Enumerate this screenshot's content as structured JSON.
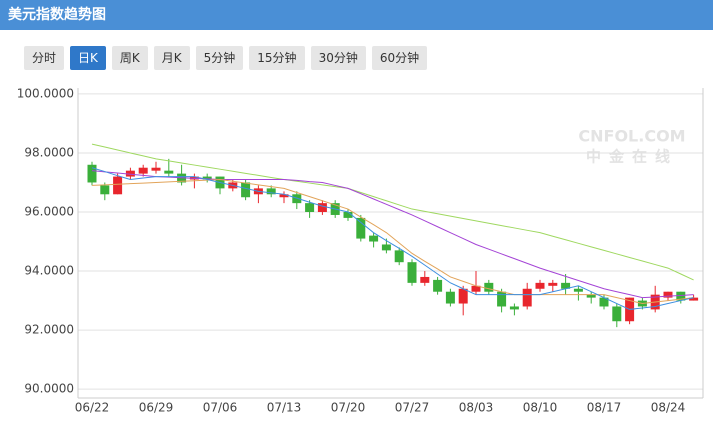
{
  "header": {
    "title": "美元指数趋势图"
  },
  "buttons": [
    "分时",
    "日K",
    "周K",
    "月K",
    "5分钟",
    "15分钟",
    "30分钟",
    "60分钟"
  ],
  "active_button": 1,
  "watermark": {
    "top": "CNFOL.COM",
    "bottom": "中金在线"
  },
  "chart_data": {
    "type": "candlestick",
    "categories": [
      "06/22",
      null,
      null,
      null,
      null,
      "06/29",
      null,
      null,
      null,
      null,
      "07/06",
      null,
      null,
      null,
      null,
      "07/13",
      null,
      null,
      null,
      null,
      "07/20",
      null,
      null,
      null,
      null,
      "07/27",
      null,
      null,
      null,
      null,
      "08/03",
      null,
      null,
      null,
      null,
      "08/10",
      null,
      null,
      null,
      null,
      "08/17",
      null,
      null,
      null,
      null,
      "08/24",
      null,
      null
    ],
    "open": [
      97.6,
      96.9,
      96.6,
      97.2,
      97.3,
      97.4,
      97.4,
      97.3,
      97.1,
      97.2,
      97.2,
      96.8,
      97.0,
      96.6,
      96.8,
      96.5,
      96.6,
      96.3,
      96.0,
      96.3,
      96.0,
      95.8,
      95.2,
      94.9,
      94.7,
      94.3,
      93.6,
      93.7,
      93.3,
      92.9,
      93.3,
      93.6,
      93.3,
      92.8,
      92.8,
      93.4,
      93.5,
      93.6,
      93.4,
      93.2,
      93.1,
      92.8,
      92.3,
      93.0,
      92.7,
      93.1,
      93.3,
      93.0
    ],
    "high": [
      97.7,
      97.0,
      97.3,
      97.5,
      97.6,
      97.7,
      97.8,
      97.6,
      97.3,
      97.3,
      97.2,
      97.1,
      97.1,
      96.9,
      96.9,
      96.7,
      96.7,
      96.4,
      96.4,
      96.4,
      96.1,
      95.9,
      95.3,
      95.1,
      94.8,
      94.4,
      94.0,
      93.8,
      93.4,
      93.5,
      94.0,
      93.7,
      93.4,
      92.9,
      93.6,
      93.7,
      93.7,
      93.9,
      93.5,
      93.3,
      93.2,
      92.9,
      93.1,
      93.1,
      93.5,
      93.3,
      93.3,
      93.2
    ],
    "low": [
      96.9,
      96.4,
      96.6,
      97.1,
      97.2,
      97.3,
      97.2,
      96.9,
      96.8,
      97.0,
      96.6,
      96.7,
      96.4,
      96.3,
      96.5,
      96.3,
      96.1,
      95.8,
      95.9,
      95.8,
      95.7,
      95.0,
      94.8,
      94.6,
      94.2,
      93.5,
      93.5,
      93.2,
      92.8,
      92.5,
      93.2,
      93.2,
      92.6,
      92.5,
      92.7,
      93.3,
      93.3,
      93.2,
      93.0,
      92.9,
      92.7,
      92.1,
      92.2,
      92.7,
      92.6,
      93.0,
      92.9,
      93.0
    ],
    "close": [
      97.0,
      96.6,
      97.2,
      97.4,
      97.5,
      97.5,
      97.3,
      97.0,
      97.2,
      97.1,
      96.8,
      97.0,
      96.5,
      96.8,
      96.6,
      96.6,
      96.3,
      96.0,
      96.3,
      95.9,
      95.8,
      95.1,
      95.0,
      94.7,
      94.3,
      93.6,
      93.8,
      93.3,
      92.9,
      93.4,
      93.5,
      93.3,
      92.8,
      92.7,
      93.4,
      93.6,
      93.6,
      93.4,
      93.3,
      93.1,
      92.8,
      92.3,
      93.1,
      92.8,
      93.2,
      93.3,
      93.0,
      93.1
    ],
    "up_color": "#e8262d",
    "down_color": "#3aaf3a",
    "ma_lines": [
      {
        "color": "#9fd860",
        "values": [
          98.3,
          98.2,
          98.1,
          98.0,
          97.9,
          97.8,
          97.73,
          97.66,
          97.59,
          97.52,
          97.45,
          97.38,
          97.31,
          97.24,
          97.17,
          97.1,
          97.04,
          96.98,
          96.92,
          96.86,
          96.8,
          96.66,
          96.52,
          96.38,
          96.24,
          96.1,
          96.02,
          95.94,
          95.86,
          95.78,
          95.7,
          95.62,
          95.54,
          95.46,
          95.38,
          95.3,
          95.18,
          95.06,
          94.94,
          94.82,
          94.7,
          94.58,
          94.46,
          94.34,
          94.22,
          94.1,
          93.9,
          93.7
        ]
      },
      {
        "color": "#a444d6",
        "values": [
          97.4,
          97.36,
          97.32,
          97.28,
          97.24,
          97.2,
          97.18,
          97.16,
          97.14,
          97.12,
          97.1,
          97.1,
          97.1,
          97.1,
          97.1,
          97.1,
          97.07,
          97.03,
          97.0,
          96.9,
          96.8,
          96.62,
          96.44,
          96.26,
          96.08,
          95.9,
          95.7,
          95.5,
          95.3,
          95.1,
          94.9,
          94.74,
          94.58,
          94.42,
          94.26,
          94.1,
          93.96,
          93.82,
          93.68,
          93.54,
          93.4,
          93.3,
          93.2,
          93.1,
          93.12,
          93.15,
          93.17,
          93.2
        ]
      },
      {
        "color": "#e2a45a",
        "values": [
          96.9,
          96.92,
          96.94,
          96.96,
          96.98,
          97.0,
          97.02,
          97.04,
          97.06,
          97.08,
          97.1,
          97.04,
          96.98,
          96.92,
          96.86,
          96.8,
          96.66,
          96.52,
          96.38,
          96.24,
          96.1,
          95.83,
          95.57,
          95.3,
          94.95,
          94.6,
          94.33,
          94.07,
          93.8,
          93.65,
          93.5,
          93.4,
          93.3,
          93.2,
          93.2,
          93.2,
          93.2,
          93.2,
          93.2,
          93.2,
          93.2,
          93.1,
          93.0,
          92.9,
          92.95,
          93.0,
          93.05,
          93.1
        ]
      },
      {
        "color": "#3d8fe0",
        "values": [
          97.5,
          97.37,
          97.23,
          97.1,
          97.15,
          97.2,
          97.2,
          97.2,
          97.2,
          97.1,
          97.0,
          96.9,
          96.8,
          96.7,
          96.65,
          96.6,
          96.47,
          96.33,
          96.2,
          96.1,
          96.0,
          95.65,
          95.3,
          95.03,
          94.77,
          94.5,
          94.2,
          93.9,
          93.6,
          93.4,
          93.2,
          93.2,
          93.2,
          93.2,
          93.2,
          93.2,
          93.3,
          93.4,
          93.5,
          93.3,
          93.1,
          92.9,
          92.7,
          92.75,
          92.8,
          92.9,
          93.0,
          93.1
        ]
      }
    ],
    "ylim": [
      89.7,
      100.2
    ],
    "yticks": [
      {
        "value": 90,
        "label": "90.0000"
      },
      {
        "value": 92,
        "label": "92.0000"
      },
      {
        "value": 94,
        "label": "94.0000"
      },
      {
        "value": 96,
        "label": "96.0000"
      },
      {
        "value": 98,
        "label": "98.0000"
      },
      {
        "value": 100,
        "label": "100.0000"
      }
    ],
    "grid": true
  }
}
